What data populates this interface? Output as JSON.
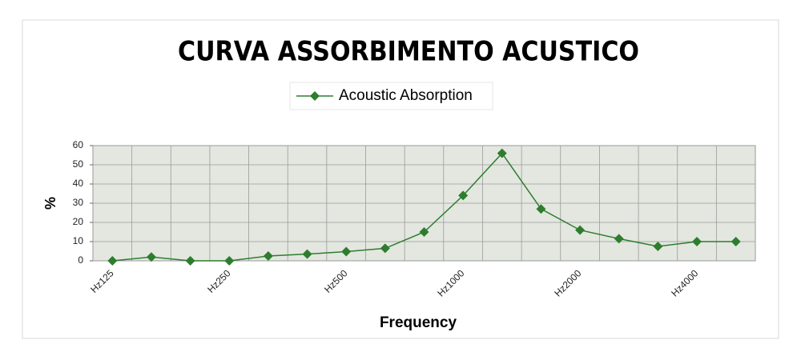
{
  "chart_data": {
    "type": "line",
    "title": "CURVA ASSORBIMENTO ACUSTICO",
    "x_label": "Frequency",
    "y_label": "%",
    "categories": [
      "Hz125",
      null,
      null,
      "Hz250",
      null,
      null,
      "Hz500",
      null,
      null,
      "Hz1000",
      null,
      null,
      "Hz2000",
      null,
      null,
      "Hz4000",
      null
    ],
    "series": [
      {
        "name": "Acoustic Absorption",
        "color": "#2e7d2e",
        "values": [
          0,
          2,
          0,
          0,
          2.5,
          3.5,
          4.8,
          6.5,
          15,
          34,
          56,
          27,
          16,
          11.5,
          7.5,
          10,
          10
        ]
      }
    ],
    "ylim": [
      0,
      60
    ],
    "yticks": [
      0,
      10,
      20,
      30,
      40,
      50,
      60
    ],
    "grid": true,
    "legend": "top"
  }
}
